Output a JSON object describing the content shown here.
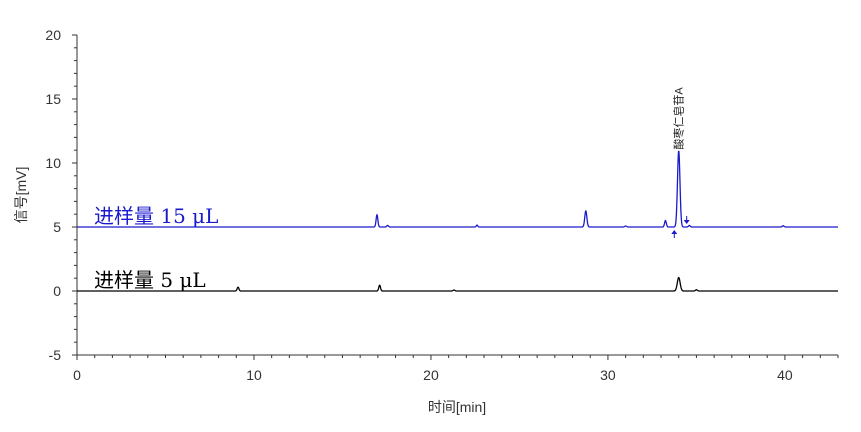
{
  "chart_data": {
    "type": "line",
    "title": "",
    "xlabel": "时间[min]",
    "ylabel": "信号[mV]",
    "xlim": [
      0,
      43
    ],
    "ylim": [
      -5,
      20
    ],
    "x_ticks": [
      0,
      10,
      20,
      30,
      40
    ],
    "y_ticks": [
      -5,
      0,
      5,
      10,
      15,
      20
    ],
    "grid": false,
    "series": [
      {
        "name": "进样量 15 μL",
        "color": "#1a1acc",
        "baseline": 5.0,
        "peaks": [
          {
            "x": 16.95,
            "height": 0.95,
            "width": 0.05
          },
          {
            "x": 17.55,
            "height": 0.12,
            "width": 0.05
          },
          {
            "x": 22.6,
            "height": 0.15,
            "width": 0.04
          },
          {
            "x": 28.75,
            "height": 1.25,
            "width": 0.06
          },
          {
            "x": 31.0,
            "height": 0.08,
            "width": 0.05
          },
          {
            "x": 33.25,
            "height": 0.5,
            "width": 0.05
          },
          {
            "x": 34.0,
            "height": 5.95,
            "width": 0.07
          },
          {
            "x": 34.6,
            "height": 0.12,
            "width": 0.05
          },
          {
            "x": 39.9,
            "height": 0.1,
            "width": 0.05
          }
        ]
      },
      {
        "name": "进样量 5 μL",
        "color": "#000000",
        "baseline": 0.0,
        "peaks": [
          {
            "x": 9.1,
            "height": 0.3,
            "width": 0.05
          },
          {
            "x": 17.1,
            "height": 0.45,
            "width": 0.05
          },
          {
            "x": 21.3,
            "height": 0.08,
            "width": 0.05
          },
          {
            "x": 34.0,
            "height": 1.05,
            "width": 0.08
          },
          {
            "x": 35.0,
            "height": 0.1,
            "width": 0.05
          }
        ]
      }
    ],
    "annotations": [
      {
        "text": "酸枣仁皂苷A",
        "x": 34.0,
        "y": 11.2,
        "series": "进样量 15 μL"
      }
    ],
    "markers": [
      {
        "type": "up-arrow",
        "x": 33.75,
        "series": "进样量 15 μL"
      },
      {
        "type": "down-arrow",
        "x": 34.45,
        "series": "进样量 15 μL"
      }
    ]
  }
}
